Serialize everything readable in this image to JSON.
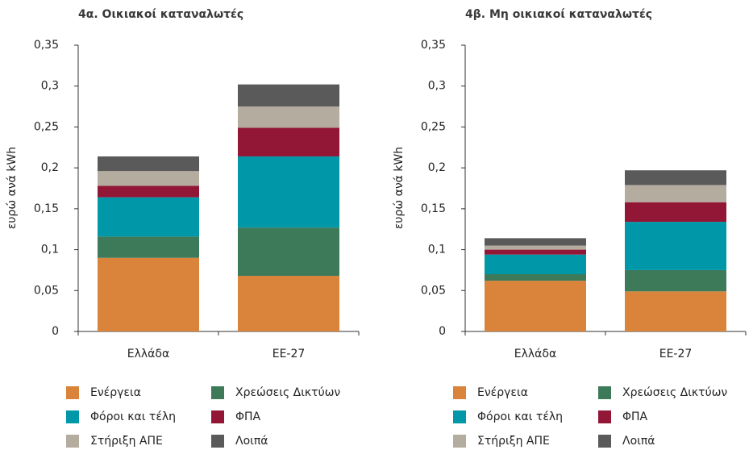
{
  "chart_data": [
    {
      "type": "bar",
      "stacked": true,
      "title": "4α. Οικιακοί καταναλωτές",
      "y_label": "ευρώ ανά kWh",
      "categories": [
        "Ελλάδα",
        "ΕΕ-27"
      ],
      "ylim": [
        0,
        0.35
      ],
      "yticks": [
        0,
        {
          "value": 0.05,
          "label": "0,05"
        },
        {
          "value": 0.1,
          "label": "0,1"
        },
        {
          "value": 0.15,
          "label": "0,15"
        },
        {
          "value": 0.2,
          "label": "0,2"
        },
        {
          "value": 0.25,
          "label": "0,25"
        },
        {
          "value": 0.3,
          "label": "0,3"
        },
        {
          "value": 0.35,
          "label": "0,35"
        }
      ],
      "series": [
        {
          "name": "Ενέργεια",
          "color": "#d9843a",
          "values": [
            0.09,
            0.068
          ]
        },
        {
          "name": "Χρεώσεις Δικτύων",
          "color": "#3d7a5a",
          "values": [
            0.026,
            0.059
          ]
        },
        {
          "name": "Φόροι και τέλη",
          "color": "#0098a8",
          "values": [
            0.048,
            0.087
          ]
        },
        {
          "name": "ΦΠΑ",
          "color": "#921737",
          "values": [
            0.014,
            0.035
          ]
        },
        {
          "name": "Στήριξη ΑΠΕ",
          "color": "#b5aca0",
          "values": [
            0.018,
            0.026
          ]
        },
        {
          "name": "Λοιπά",
          "color": "#5a5a5a",
          "values": [
            0.018,
            0.027
          ]
        }
      ]
    },
    {
      "type": "bar",
      "stacked": true,
      "title": "4β. Μη οικιακοί καταναλωτές",
      "y_label": "ευρώ ανά kWh",
      "categories": [
        "Ελλάδα",
        "ΕΕ-27"
      ],
      "ylim": [
        0,
        0.35
      ],
      "yticks": [
        0,
        {
          "value": 0.05,
          "label": "0,05"
        },
        {
          "value": 0.1,
          "label": "0,1"
        },
        {
          "value": 0.15,
          "label": "0,15"
        },
        {
          "value": 0.2,
          "label": "0,2"
        },
        {
          "value": 0.25,
          "label": "0,25"
        },
        {
          "value": 0.3,
          "label": "0,3"
        },
        {
          "value": 0.35,
          "label": "0,35"
        }
      ],
      "series": [
        {
          "name": "Ενέργεια",
          "color": "#d9843a",
          "values": [
            0.062,
            0.049
          ]
        },
        {
          "name": "Χρεώσεις Δικτύων",
          "color": "#3d7a5a",
          "values": [
            0.008,
            0.026
          ]
        },
        {
          "name": "Φόροι και τέλη",
          "color": "#0098a8",
          "values": [
            0.024,
            0.059
          ]
        },
        {
          "name": "ΦΠΑ",
          "color": "#921737",
          "values": [
            0.006,
            0.024
          ]
        },
        {
          "name": "Στήριξη ΑΠΕ",
          "color": "#b5aca0",
          "values": [
            0.005,
            0.021
          ]
        },
        {
          "name": "Λοιπά",
          "color": "#5a5a5a",
          "values": [
            0.009,
            0.018
          ]
        }
      ]
    }
  ]
}
